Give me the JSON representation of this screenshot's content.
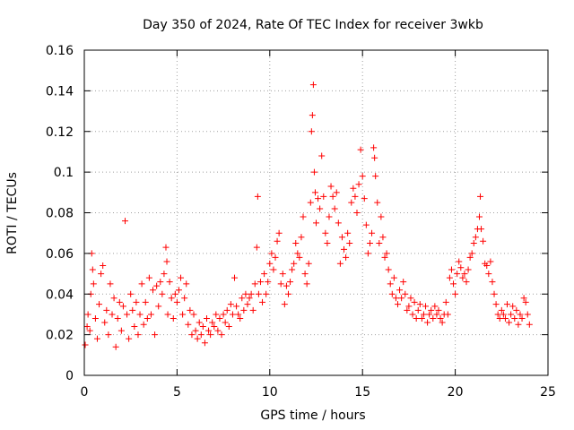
{
  "chart_data": {
    "type": "scatter",
    "title": "Day 350 of 2024, Rate Of TEC Index for receiver 3wkb",
    "xlabel": "GPS time / hours",
    "ylabel": "ROTI / TECUs",
    "xlim": [
      0,
      25
    ],
    "ylim": [
      0,
      0.16
    ],
    "xticks": [
      0,
      5,
      10,
      15,
      20,
      25
    ],
    "xtick_labels": [
      "0",
      "5",
      "10",
      "15",
      "20",
      "25"
    ],
    "yticks": [
      0,
      0.02,
      0.04,
      0.06,
      0.08,
      0.1,
      0.12,
      0.14,
      0.16
    ],
    "ytick_labels": [
      "0",
      "0.02",
      "0.04",
      "0.06",
      "0.08",
      "0.1",
      "0.12",
      "0.14",
      "0.16"
    ],
    "grid": true,
    "marker": "+",
    "color": "#ff0000",
    "series": [
      {
        "name": "ROTI",
        "points": [
          [
            0.05,
            0.015
          ],
          [
            0.15,
            0.024
          ],
          [
            0.2,
            0.03
          ],
          [
            0.3,
            0.022
          ],
          [
            0.35,
            0.04
          ],
          [
            0.4,
            0.06
          ],
          [
            0.45,
            0.052
          ],
          [
            0.5,
            0.045
          ],
          [
            0.6,
            0.028
          ],
          [
            0.7,
            0.018
          ],
          [
            0.8,
            0.035
          ],
          [
            0.9,
            0.05
          ],
          [
            1.0,
            0.054
          ],
          [
            1.1,
            0.026
          ],
          [
            1.2,
            0.032
          ],
          [
            1.3,
            0.02
          ],
          [
            1.4,
            0.045
          ],
          [
            1.5,
            0.03
          ],
          [
            1.6,
            0.038
          ],
          [
            1.7,
            0.014
          ],
          [
            1.8,
            0.028
          ],
          [
            1.9,
            0.036
          ],
          [
            2.0,
            0.022
          ],
          [
            2.1,
            0.034
          ],
          [
            2.2,
            0.076
          ],
          [
            2.3,
            0.03
          ],
          [
            2.4,
            0.018
          ],
          [
            2.5,
            0.04
          ],
          [
            2.6,
            0.032
          ],
          [
            2.7,
            0.024
          ],
          [
            2.8,
            0.036
          ],
          [
            2.9,
            0.02
          ],
          [
            3.0,
            0.03
          ],
          [
            3.1,
            0.045
          ],
          [
            3.2,
            0.025
          ],
          [
            3.3,
            0.036
          ],
          [
            3.4,
            0.028
          ],
          [
            3.5,
            0.048
          ],
          [
            3.6,
            0.03
          ],
          [
            3.7,
            0.042
          ],
          [
            3.8,
            0.02
          ],
          [
            3.9,
            0.044
          ],
          [
            4.0,
            0.034
          ],
          [
            4.1,
            0.046
          ],
          [
            4.2,
            0.04
          ],
          [
            4.3,
            0.05
          ],
          [
            4.4,
            0.063
          ],
          [
            4.45,
            0.056
          ],
          [
            4.5,
            0.03
          ],
          [
            4.6,
            0.046
          ],
          [
            4.7,
            0.038
          ],
          [
            4.8,
            0.028
          ],
          [
            4.9,
            0.04
          ],
          [
            5.0,
            0.036
          ],
          [
            5.1,
            0.042
          ],
          [
            5.2,
            0.048
          ],
          [
            5.3,
            0.03
          ],
          [
            5.4,
            0.038
          ],
          [
            5.5,
            0.045
          ],
          [
            5.6,
            0.025
          ],
          [
            5.7,
            0.032
          ],
          [
            5.8,
            0.02
          ],
          [
            5.9,
            0.03
          ],
          [
            6.0,
            0.022
          ],
          [
            6.1,
            0.018
          ],
          [
            6.2,
            0.026
          ],
          [
            6.3,
            0.02
          ],
          [
            6.4,
            0.024
          ],
          [
            6.5,
            0.016
          ],
          [
            6.6,
            0.028
          ],
          [
            6.7,
            0.022
          ],
          [
            6.8,
            0.02
          ],
          [
            6.9,
            0.026
          ],
          [
            7.0,
            0.024
          ],
          [
            7.1,
            0.03
          ],
          [
            7.2,
            0.022
          ],
          [
            7.3,
            0.028
          ],
          [
            7.4,
            0.02
          ],
          [
            7.5,
            0.03
          ],
          [
            7.6,
            0.026
          ],
          [
            7.7,
            0.032
          ],
          [
            7.8,
            0.024
          ],
          [
            7.9,
            0.035
          ],
          [
            8.0,
            0.03
          ],
          [
            8.1,
            0.048
          ],
          [
            8.2,
            0.034
          ],
          [
            8.3,
            0.03
          ],
          [
            8.4,
            0.028
          ],
          [
            8.5,
            0.038
          ],
          [
            8.6,
            0.032
          ],
          [
            8.7,
            0.04
          ],
          [
            8.8,
            0.035
          ],
          [
            8.9,
            0.038
          ],
          [
            9.0,
            0.04
          ],
          [
            9.1,
            0.032
          ],
          [
            9.2,
            0.045
          ],
          [
            9.3,
            0.063
          ],
          [
            9.35,
            0.088
          ],
          [
            9.4,
            0.04
          ],
          [
            9.5,
            0.046
          ],
          [
            9.6,
            0.036
          ],
          [
            9.7,
            0.05
          ],
          [
            9.8,
            0.04
          ],
          [
            9.9,
            0.046
          ],
          [
            10.0,
            0.055
          ],
          [
            10.1,
            0.06
          ],
          [
            10.2,
            0.052
          ],
          [
            10.3,
            0.058
          ],
          [
            10.4,
            0.066
          ],
          [
            10.5,
            0.07
          ],
          [
            10.6,
            0.045
          ],
          [
            10.7,
            0.05
          ],
          [
            10.8,
            0.035
          ],
          [
            10.9,
            0.044
          ],
          [
            11.0,
            0.04
          ],
          [
            11.1,
            0.046
          ],
          [
            11.2,
            0.052
          ],
          [
            11.3,
            0.055
          ],
          [
            11.4,
            0.065
          ],
          [
            11.5,
            0.06
          ],
          [
            11.6,
            0.058
          ],
          [
            11.7,
            0.068
          ],
          [
            11.8,
            0.078
          ],
          [
            11.9,
            0.05
          ],
          [
            12.0,
            0.045
          ],
          [
            12.1,
            0.055
          ],
          [
            12.2,
            0.085
          ],
          [
            12.25,
            0.12
          ],
          [
            12.3,
            0.128
          ],
          [
            12.35,
            0.143
          ],
          [
            12.4,
            0.1
          ],
          [
            12.45,
            0.09
          ],
          [
            12.5,
            0.075
          ],
          [
            12.6,
            0.087
          ],
          [
            12.7,
            0.082
          ],
          [
            12.8,
            0.108
          ],
          [
            12.9,
            0.088
          ],
          [
            13.0,
            0.07
          ],
          [
            13.1,
            0.065
          ],
          [
            13.2,
            0.078
          ],
          [
            13.3,
            0.093
          ],
          [
            13.4,
            0.088
          ],
          [
            13.5,
            0.082
          ],
          [
            13.6,
            0.09
          ],
          [
            13.7,
            0.075
          ],
          [
            13.8,
            0.055
          ],
          [
            13.9,
            0.068
          ],
          [
            14.0,
            0.062
          ],
          [
            14.1,
            0.058
          ],
          [
            14.2,
            0.07
          ],
          [
            14.3,
            0.065
          ],
          [
            14.4,
            0.085
          ],
          [
            14.5,
            0.092
          ],
          [
            14.6,
            0.088
          ],
          [
            14.7,
            0.08
          ],
          [
            14.8,
            0.094
          ],
          [
            14.9,
            0.111
          ],
          [
            15.0,
            0.098
          ],
          [
            15.1,
            0.087
          ],
          [
            15.2,
            0.074
          ],
          [
            15.3,
            0.06
          ],
          [
            15.4,
            0.065
          ],
          [
            15.5,
            0.07
          ],
          [
            15.6,
            0.112
          ],
          [
            15.65,
            0.107
          ],
          [
            15.7,
            0.098
          ],
          [
            15.8,
            0.085
          ],
          [
            15.9,
            0.065
          ],
          [
            16.0,
            0.078
          ],
          [
            16.1,
            0.068
          ],
          [
            16.2,
            0.058
          ],
          [
            16.3,
            0.06
          ],
          [
            16.4,
            0.052
          ],
          [
            16.5,
            0.045
          ],
          [
            16.6,
            0.04
          ],
          [
            16.7,
            0.048
          ],
          [
            16.8,
            0.038
          ],
          [
            16.9,
            0.035
          ],
          [
            17.0,
            0.042
          ],
          [
            17.1,
            0.038
          ],
          [
            17.2,
            0.046
          ],
          [
            17.3,
            0.04
          ],
          [
            17.4,
            0.032
          ],
          [
            17.5,
            0.034
          ],
          [
            17.6,
            0.038
          ],
          [
            17.7,
            0.03
          ],
          [
            17.8,
            0.036
          ],
          [
            17.9,
            0.028
          ],
          [
            18.0,
            0.032
          ],
          [
            18.1,
            0.035
          ],
          [
            18.2,
            0.028
          ],
          [
            18.3,
            0.03
          ],
          [
            18.4,
            0.034
          ],
          [
            18.5,
            0.026
          ],
          [
            18.6,
            0.03
          ],
          [
            18.7,
            0.032
          ],
          [
            18.8,
            0.028
          ],
          [
            18.9,
            0.034
          ],
          [
            19.0,
            0.03
          ],
          [
            19.1,
            0.032
          ],
          [
            19.2,
            0.028
          ],
          [
            19.3,
            0.026
          ],
          [
            19.4,
            0.03
          ],
          [
            19.5,
            0.036
          ],
          [
            19.6,
            0.03
          ],
          [
            19.7,
            0.048
          ],
          [
            19.8,
            0.052
          ],
          [
            19.9,
            0.045
          ],
          [
            20.0,
            0.04
          ],
          [
            20.1,
            0.05
          ],
          [
            20.2,
            0.056
          ],
          [
            20.3,
            0.053
          ],
          [
            20.4,
            0.048
          ],
          [
            20.5,
            0.05
          ],
          [
            20.6,
            0.046
          ],
          [
            20.7,
            0.052
          ],
          [
            20.8,
            0.058
          ],
          [
            20.9,
            0.06
          ],
          [
            21.0,
            0.065
          ],
          [
            21.1,
            0.068
          ],
          [
            21.2,
            0.072
          ],
          [
            21.3,
            0.078
          ],
          [
            21.35,
            0.088
          ],
          [
            21.4,
            0.072
          ],
          [
            21.5,
            0.066
          ],
          [
            21.6,
            0.055
          ],
          [
            21.7,
            0.054
          ],
          [
            21.8,
            0.05
          ],
          [
            21.9,
            0.056
          ],
          [
            22.0,
            0.046
          ],
          [
            22.1,
            0.04
          ],
          [
            22.2,
            0.035
          ],
          [
            22.3,
            0.03
          ],
          [
            22.4,
            0.028
          ],
          [
            22.5,
            0.032
          ],
          [
            22.6,
            0.03
          ],
          [
            22.7,
            0.028
          ],
          [
            22.8,
            0.035
          ],
          [
            22.9,
            0.026
          ],
          [
            23.0,
            0.03
          ],
          [
            23.1,
            0.034
          ],
          [
            23.2,
            0.028
          ],
          [
            23.3,
            0.032
          ],
          [
            23.4,
            0.025
          ],
          [
            23.5,
            0.03
          ],
          [
            23.6,
            0.028
          ],
          [
            23.7,
            0.038
          ],
          [
            23.8,
            0.036
          ],
          [
            23.9,
            0.03
          ],
          [
            24.0,
            0.025
          ]
        ]
      }
    ]
  }
}
